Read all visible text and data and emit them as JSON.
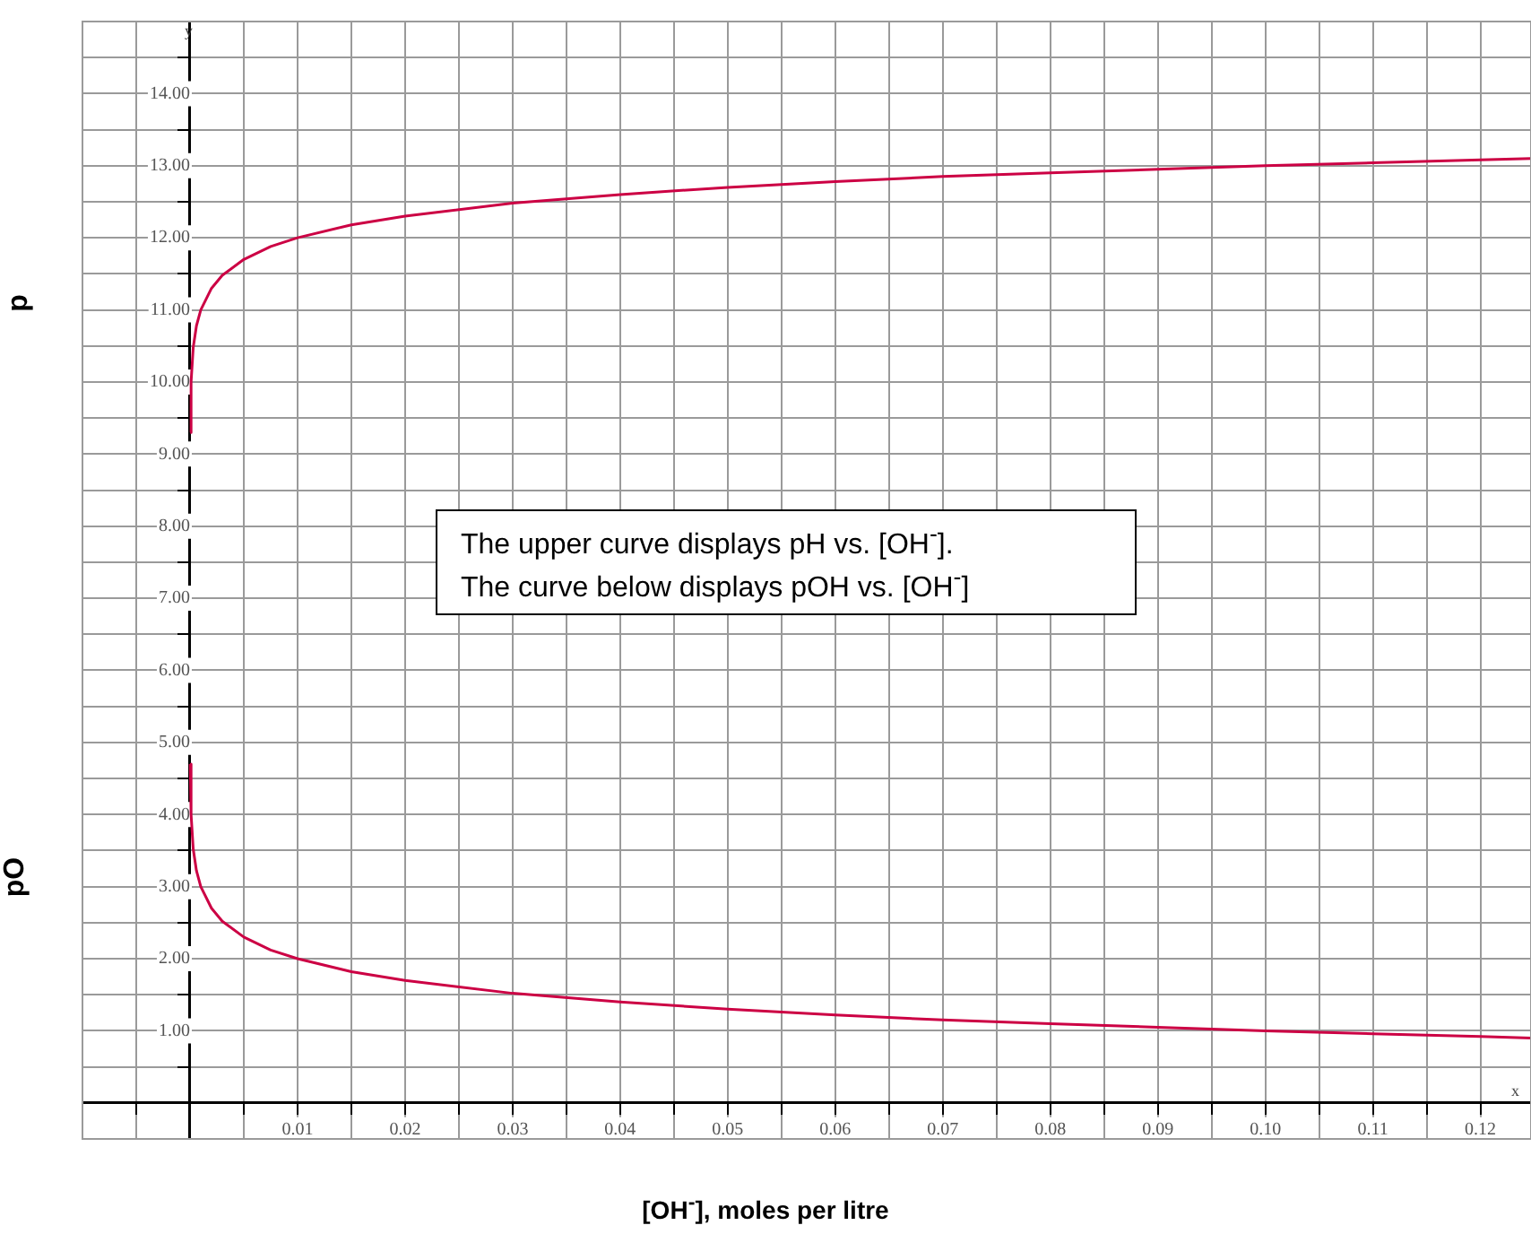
{
  "chart_data": {
    "type": "line",
    "xlabel": "[OH$^{-}$], moles per litre",
    "ylabel": "p",
    "annotations": [
      "pO",
      "The upper curve displays pH vs. [OH$^{-}$].",
      "The curve below displays pOH vs. [OH$^{-}$]",
      "y",
      "x"
    ],
    "x": [
      2e-05,
      0.0001,
      0.0003,
      0.0006,
      0.001,
      0.002,
      0.003,
      0.005,
      0.0075,
      0.01,
      0.015,
      0.02,
      0.03,
      0.04,
      0.05,
      0.06,
      0.07,
      0.08,
      0.09,
      0.1,
      0.11,
      0.12,
      0.1247
    ],
    "series": [
      {
        "color": "#cc0044",
        "values": [
          9.3,
          10.0,
          10.48,
          10.78,
          11.0,
          11.3,
          11.48,
          11.7,
          11.88,
          12.0,
          12.18,
          12.3,
          12.48,
          12.6,
          12.7,
          12.78,
          12.85,
          12.9,
          12.95,
          13.0,
          13.04,
          13.08,
          13.1
        ]
      },
      {
        "color": "#cc0044",
        "values": [
          4.7,
          4.0,
          3.52,
          3.22,
          3.0,
          2.7,
          2.52,
          2.3,
          2.12,
          2.0,
          1.82,
          1.7,
          1.52,
          1.4,
          1.3,
          1.22,
          1.15,
          1.1,
          1.05,
          1.0,
          0.96,
          0.92,
          0.9
        ]
      }
    ],
    "xlim": [
      -0.01,
      0.1247
    ],
    "ylim": [
      -0.5,
      15
    ],
    "xticks": [
      {
        "value": -0.01,
        "label": null
      },
      {
        "value": -0.005,
        "label": null
      },
      {
        "value": 0,
        "label": null
      },
      {
        "value": 0.005,
        "label": null
      },
      0.01,
      {
        "value": 0.015,
        "label": null
      },
      0.02,
      {
        "value": 0.025,
        "label": null
      },
      0.03,
      {
        "value": 0.035,
        "label": null
      },
      0.04,
      {
        "value": 0.045,
        "label": null
      },
      0.05,
      {
        "value": 0.055,
        "label": null
      },
      0.06,
      {
        "value": 0.065,
        "label": null
      },
      0.07,
      {
        "value": 0.075,
        "label": null
      },
      0.08,
      {
        "value": 0.085,
        "label": null
      },
      0.09,
      {
        "value": 0.095,
        "label": null
      },
      {
        "value": 0.1,
        "label": "0.10"
      },
      {
        "value": 0.105,
        "label": null
      },
      0.11,
      {
        "value": 0.115,
        "label": null
      },
      0.12
    ],
    "yticks": [
      {
        "value": -0.5,
        "label": null
      },
      {
        "value": 0,
        "label": null
      },
      {
        "value": 0.5,
        "label": null
      },
      {
        "value": 1,
        "label": "1.00"
      },
      {
        "value": 1.5,
        "label": null
      },
      {
        "value": 2,
        "label": "2.00"
      },
      {
        "value": 2.5,
        "label": null
      },
      {
        "value": 3,
        "label": "3.00"
      },
      {
        "value": 3.5,
        "label": null
      },
      {
        "value": 4,
        "label": "4.00"
      },
      {
        "value": 4.5,
        "label": null
      },
      {
        "value": 5,
        "label": "5.00"
      },
      {
        "value": 5.5,
        "label": null
      },
      {
        "value": 6,
        "label": "6.00"
      },
      {
        "value": 6.5,
        "label": null
      },
      {
        "value": 7,
        "label": "7.00"
      },
      {
        "value": 7.5,
        "label": null
      },
      {
        "value": 8,
        "label": "8.00"
      },
      {
        "value": 8.5,
        "label": null
      },
      {
        "value": 9,
        "label": "9.00"
      },
      {
        "value": 9.5,
        "label": null
      },
      {
        "value": 10,
        "label": "10.00"
      },
      {
        "value": 10.5,
        "label": null
      },
      {
        "value": 11,
        "label": "11.00"
      },
      {
        "value": 11.5,
        "label": null
      },
      {
        "value": 12,
        "label": "12.00"
      },
      {
        "value": 12.5,
        "label": null
      },
      {
        "value": 13,
        "label": "13.00"
      },
      {
        "value": 13.5,
        "label": null
      },
      {
        "value": 14,
        "label": "14.00"
      },
      {
        "value": 14.5,
        "label": null
      },
      {
        "value": 15,
        "label": null
      }
    ],
    "grid": true,
    "legend": false,
    "marker": "none",
    "line_style": "solid"
  }
}
